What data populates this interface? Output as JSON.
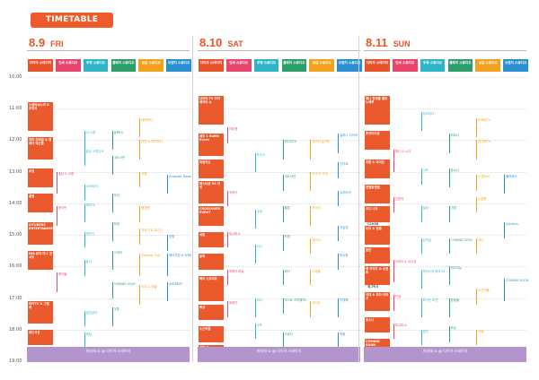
{
  "banner": "TIMETABLE",
  "times": [
    "10:00",
    "11:00",
    "12:00",
    "13:00",
    "14:00",
    "15:00",
    "16:00",
    "17:00",
    "18:00",
    "19:00"
  ],
  "stage_names": [
    "다이아 스테이지",
    "인싸 스튜디오",
    "우정 스튜디오",
    "플레이 스튜디오",
    "공감 스튜디오",
    "오렌지 스튜디오"
  ],
  "stage_colors": [
    "#e8532a",
    "#e9456c",
    "#2eb6c8",
    "#2c9f6a",
    "#f4a21d",
    "#2a8fd0"
  ],
  "days": [
    {
      "num": "8.9",
      "dow": "FRI",
      "closing": "피날레 쇼 @ 다이아 스테이지",
      "blocks": [
        {
          "t": "노잼박씨노리 & 주밍리",
          "s": 10.8,
          "e": 11.7
        },
        {
          "t": "허미 모바일 & 엔제이 해산물",
          "s": 11.9,
          "e": 12.6
        },
        {
          "t": "보겸",
          "s": 12.9,
          "e": 13.5
        },
        {
          "t": "꿀잼",
          "s": 13.7,
          "e": 14.3
        },
        {
          "t": "U-TUBERS ENTERTAINMENT",
          "s": 14.6,
          "e": 15.3
        },
        {
          "t": "DIA 뮤직 미니 콘서트",
          "s": 15.5,
          "e": 16.1
        },
        {
          "t": "마카TV & 그웬체",
          "s": 17.1,
          "e": 17.8
        },
        {
          "t": "대도서관",
          "s": 18.0,
          "e": 18.5
        }
      ],
      "events": [
        {
          "c": 1,
          "t": "홍남 & 소봄",
          "s": 13.0,
          "e": 13.7
        },
        {
          "c": 1,
          "t": "윤오민",
          "s": 14.1,
          "e": 14.7
        },
        {
          "c": 1,
          "t": "에이블",
          "s": 16.2,
          "e": 16.8
        },
        {
          "c": 2,
          "t": "더 스콥",
          "s": 11.7,
          "e": 12.3
        },
        {
          "c": 2,
          "t": "홍남 스튜디오",
          "s": 12.3,
          "e": 12.8
        },
        {
          "c": 2,
          "t": "아이비TV",
          "s": 13.4,
          "e": 13.9
        },
        {
          "c": 2,
          "t": "캐리TV",
          "s": 14.0,
          "e": 14.6
        },
        {
          "c": 2,
          "t": "박빈이",
          "s": 14.9,
          "e": 15.4
        },
        {
          "c": 2,
          "t": "홍가",
          "s": 15.8,
          "e": 16.3
        },
        {
          "c": 2,
          "t": "공감남녀",
          "s": 17.4,
          "e": 17.9
        },
        {
          "c": 2,
          "t": "엠빌",
          "s": 18.1,
          "e": 18.6
        },
        {
          "c": 3,
          "t": "일렉TV",
          "s": 11.7,
          "e": 12.3
        },
        {
          "c": 3,
          "t": "대도서관",
          "s": 12.5,
          "e": 13.1
        },
        {
          "c": 3,
          "t": "우린",
          "s": 13.7,
          "e": 14.3
        },
        {
          "c": 3,
          "t": "보겸",
          "s": 14.6,
          "e": 15.2
        },
        {
          "c": 3,
          "t": "스피어",
          "s": 15.5,
          "e": 16.1
        },
        {
          "c": 3,
          "t": "COMING SOON",
          "s": 16.5,
          "e": 17.0
        },
        {
          "c": 3,
          "t": "아톡",
          "s": 17.3,
          "e": 17.9
        },
        {
          "c": 4,
          "t": "에끼박사",
          "s": 11.3,
          "e": 11.9
        },
        {
          "c": 4,
          "t": "아린 & 에끼박사",
          "s": 12.0,
          "e": 12.6
        },
        {
          "c": 4,
          "t": "허팝",
          "s": 13.0,
          "e": 13.5
        },
        {
          "c": 4,
          "t": "풍월량",
          "s": 14.1,
          "e": 14.6
        },
        {
          "c": 4,
          "t": "저라이 & 최고다",
          "s": 14.8,
          "e": 15.3
        },
        {
          "c": 4,
          "t": "Violinist 우승",
          "s": 15.6,
          "e": 16.3
        },
        {
          "c": 4,
          "t": "도티 & 잠뜰",
          "s": 16.6,
          "e": 17.2
        },
        {
          "c": 5,
          "t": "Amanda Tavares & 주민",
          "s": 13.1,
          "e": 13.7
        },
        {
          "c": 5,
          "t": "양띵",
          "s": 15.0,
          "e": 15.5
        },
        {
          "c": 5,
          "t": "웨이크업 & 쏘렌비",
          "s": 15.6,
          "e": 16.3
        },
        {
          "c": 5,
          "t": "ARTBEAT",
          "s": 16.5,
          "e": 17.1
        }
      ]
    },
    {
      "num": "8.10",
      "dow": "SAT",
      "closing": "피날레 쇼 @ 다이아 스테이지",
      "blocks": [
        {
          "t": "다이아 TV 크리에이터 쇼",
          "s": 10.6,
          "e": 11.5
        },
        {
          "t": "세트 1 Raffle Event",
          "s": 11.8,
          "e": 12.5
        },
        {
          "t": "어썸하은",
          "s": 12.6,
          "e": 13.2
        },
        {
          "t": "테스터훈 VS 마멋",
          "s": 13.3,
          "e": 14.0
        },
        {
          "t": "CROSSOVER EVENT",
          "s": 14.1,
          "e": 14.7
        },
        {
          "t": "쉬림",
          "s": 14.9,
          "e": 15.4
        },
        {
          "t": "윤찌",
          "s": 15.6,
          "e": 16.1
        },
        {
          "t": "헤이 스트리트",
          "s": 16.3,
          "e": 17.1
        },
        {
          "t": "쁘냥",
          "s": 17.2,
          "e": 17.7
        },
        {
          "t": "소근커플",
          "s": 17.9,
          "e": 18.4
        },
        {
          "t": "회전 교",
          "s": 18.5,
          "e": 19.0
        }
      ],
      "events": [
        {
          "c": 1,
          "t": "아띠엔",
          "s": 11.6,
          "e": 12.1
        },
        {
          "c": 1,
          "t": "꾹꾹이",
          "s": 13.6,
          "e": 14.1
        },
        {
          "c": 1,
          "t": "피시파 A",
          "s": 14.9,
          "e": 15.4
        },
        {
          "c": 1,
          "t": "외래어 하늘",
          "s": 16.1,
          "e": 16.6
        },
        {
          "c": 1,
          "t": "데레꼰",
          "s": 17.1,
          "e": 17.6
        },
        {
          "c": 2,
          "t": "조주크",
          "s": 12.4,
          "e": 13.0
        },
        {
          "c": 2,
          "t": "수정",
          "s": 14.2,
          "e": 14.8
        },
        {
          "c": 2,
          "t": "서니",
          "s": 15.3,
          "e": 15.9
        },
        {
          "c": 2,
          "t": "덕시",
          "s": 17.0,
          "e": 17.6
        },
        {
          "c": 2,
          "t": "소프",
          "s": 17.8,
          "e": 18.3
        },
        {
          "c": 3,
          "t": "애니지TV",
          "s": 12.0,
          "e": 12.6
        },
        {
          "c": 3,
          "t": "대도서관",
          "s": 13.1,
          "e": 13.6
        },
        {
          "c": 3,
          "t": "물론",
          "s": 14.1,
          "e": 14.6
        },
        {
          "c": 3,
          "t": "보겸",
          "s": 15.0,
          "e": 15.5
        },
        {
          "c": 3,
          "t": "제이",
          "s": 16.1,
          "e": 16.6
        },
        {
          "c": 3,
          "t": "라스트 크리에이터",
          "s": 17.0,
          "e": 17.5
        },
        {
          "c": 3,
          "t": "고밥지",
          "s": 18.1,
          "e": 18.6
        },
        {
          "c": 4,
          "t": "악어의 놀이터",
          "s": 12.0,
          "e": 12.6
        },
        {
          "c": 4,
          "t": "아이 & 이대",
          "s": 13.0,
          "e": 13.6
        },
        {
          "c": 4,
          "t": "아이리",
          "s": 14.1,
          "e": 14.7
        },
        {
          "c": 4,
          "t": "에이이",
          "s": 15.1,
          "e": 15.6
        },
        {
          "c": 4,
          "t": "스와들",
          "s": 16.1,
          "e": 16.6
        },
        {
          "c": 4,
          "t": "이미주",
          "s": 17.1,
          "e": 17.6
        },
        {
          "c": 5,
          "t": "걸러니 다이아",
          "s": 11.8,
          "e": 12.4
        },
        {
          "c": 5,
          "t": "긴티르",
          "s": 12.7,
          "e": 13.2
        },
        {
          "c": 5,
          "t": "우리라이",
          "s": 13.6,
          "e": 14.1
        },
        {
          "c": 5,
          "t": "아임띵",
          "s": 14.7,
          "e": 15.2
        },
        {
          "c": 5,
          "t": "피시파",
          "s": 15.6,
          "e": 16.1
        },
        {
          "c": 5,
          "t": "이대해",
          "s": 17.0,
          "e": 17.6
        },
        {
          "c": 5,
          "t": "하람",
          "s": 18.1,
          "e": 18.6
        },
        {
          "c": 6,
          "t": "Sissel",
          "s": 12.9,
          "e": 13.4
        },
        {
          "c": 6,
          "t": "Yu Kagawa",
          "s": 13.6,
          "e": 14.1
        },
        {
          "c": 6,
          "t": "G2HAN",
          "s": 14.6,
          "e": 15.1
        },
        {
          "c": 6,
          "t": "고진크",
          "s": 15.6,
          "e": 16.1
        },
        {
          "c": 6,
          "t": "에그박사",
          "s": 16.6,
          "e": 17.1
        }
      ]
    },
    {
      "num": "8.11",
      "dow": "SUN",
      "closing": "피날레 쇼 @ 다이아 스테이지",
      "blocks": [
        {
          "t": "제니 한국롤 콜리 노래뿌",
          "s": 10.6,
          "e": 11.5
        },
        {
          "t": "쁘꼬마카롱",
          "s": 11.7,
          "e": 12.3
        },
        {
          "t": "허팝 & 마이린",
          "s": 12.6,
          "e": 13.2
        },
        {
          "t": "엔젤링엔젤",
          "s": 13.4,
          "e": 14.0
        },
        {
          "t": "코드 나오",
          "s": 14.1,
          "e": 14.6
        },
        {
          "t": "도티 & 잠뜰",
          "s": 14.7,
          "e": 15.3
        },
        {
          "t": "쿨린",
          "s": 15.4,
          "e": 15.9
        },
        {
          "t": "왜 라이즈 & 쏘렌비",
          "s": 16.0,
          "e": 16.6
        },
        {
          "t": "이대 & 투자 이야기",
          "s": 16.8,
          "e": 17.4
        },
        {
          "t": "유소나",
          "s": 17.6,
          "e": 18.1
        },
        {
          "t": "COMING SOON",
          "s": 18.3,
          "e": 18.8
        }
      ],
      "events": [
        {
          "c": 1,
          "t": "예니 & 시크",
          "s": 12.3,
          "e": 13.0
        },
        {
          "c": 1,
          "t": "선흔커",
          "s": 13.8,
          "e": 14.3
        },
        {
          "c": 1,
          "t": "지라이 & 이수진",
          "s": 15.8,
          "e": 16.5
        },
        {
          "c": 1,
          "t": "안녕",
          "s": 16.9,
          "e": 17.4
        },
        {
          "c": 1,
          "t": "피시파 A",
          "s": 17.8,
          "e": 18.3
        },
        {
          "c": 2,
          "t": "담셔리다",
          "s": 11.1,
          "e": 11.7
        },
        {
          "c": 2,
          "t": "나도",
          "s": 12.9,
          "e": 13.4
        },
        {
          "c": 2,
          "t": "일상",
          "s": 14.1,
          "e": 14.6
        },
        {
          "c": 2,
          "t": "김익살",
          "s": 15.1,
          "e": 15.6
        },
        {
          "c": 2,
          "t": "헤이스카 위의 SOLO",
          "s": 16.1,
          "e": 16.7
        },
        {
          "c": 2,
          "t": "위기는 도전",
          "s": 17.0,
          "e": 17.6
        },
        {
          "c": 2,
          "t": "앱치",
          "s": 18.0,
          "e": 18.5
        },
        {
          "c": 3,
          "t": "피피나",
          "s": 11.8,
          "e": 12.4
        },
        {
          "c": 3,
          "t": "뮤쇼나",
          "s": 12.9,
          "e": 13.5
        },
        {
          "c": 3,
          "t": "이월",
          "s": 14.1,
          "e": 14.6
        },
        {
          "c": 3,
          "t": "COMING SOON",
          "s": 15.1,
          "e": 15.6
        },
        {
          "c": 3,
          "t": "태스티뉴",
          "s": 16.0,
          "e": 16.6
        },
        {
          "c": 3,
          "t": "청둥볼",
          "s": 17.0,
          "e": 17.6
        },
        {
          "c": 3,
          "t": "보상",
          "s": 17.9,
          "e": 18.4
        },
        {
          "c": 4,
          "t": "러찌로TV",
          "s": 11.3,
          "e": 11.9
        },
        {
          "c": 4,
          "t": "라이프TV",
          "s": 12.0,
          "e": 12.6
        },
        {
          "c": 4,
          "t": "노잼박씨",
          "s": 13.1,
          "e": 13.6
        },
        {
          "c": 4,
          "t": "노잼봇",
          "s": 13.8,
          "e": 14.3
        },
        {
          "c": 4,
          "t": "예니",
          "s": 15.1,
          "e": 15.6
        },
        {
          "c": 4,
          "t": "소근커플",
          "s": 16.7,
          "e": 17.2
        },
        {
          "c": 4,
          "t": "하람",
          "s": 18.0,
          "e": 18.5
        },
        {
          "c": 5,
          "t": "불러바다",
          "s": 13.1,
          "e": 13.7
        },
        {
          "c": 5,
          "t": "jhjtakim",
          "s": 14.6,
          "e": 15.1
        },
        {
          "c": 5,
          "t": "COMING SOON",
          "s": 16.4,
          "e": 17.1
        }
      ]
    }
  ]
}
